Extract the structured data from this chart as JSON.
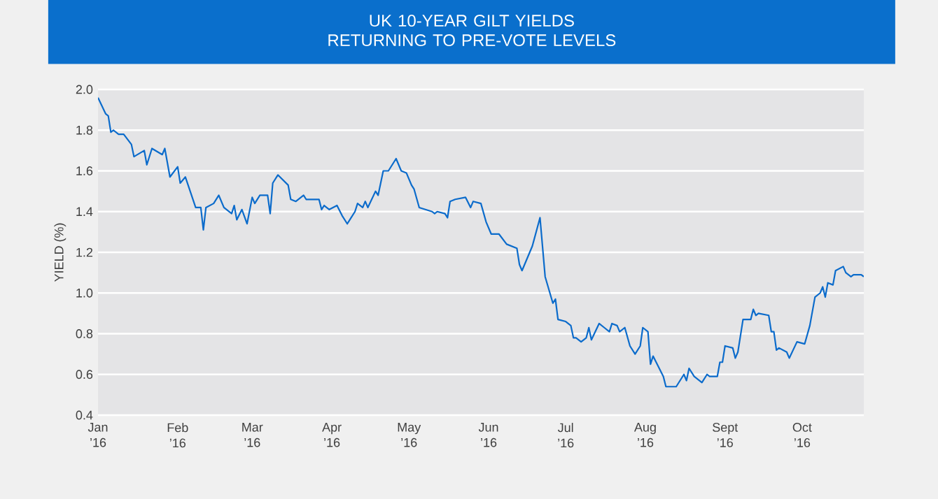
{
  "chart_data": {
    "type": "line",
    "title": "UK 10-YEAR GILT YIELDS RETURNING TO PRE-VOTE LEVELS",
    "ylabel": "YIELD (%)",
    "xlim": [
      "2016-01-01",
      "2016-10-25"
    ],
    "xticks": [
      {
        "value": "2016-01-01",
        "label": "Jan ’16"
      },
      {
        "value": "2016-02-01",
        "label": "Feb ’16"
      },
      {
        "value": "2016-03-01",
        "label": "Mar ’16"
      },
      {
        "value": "2016-04-01",
        "label": "Apr ’16"
      },
      {
        "value": "2016-05-01",
        "label": "May ’16"
      },
      {
        "value": "2016-06-01",
        "label": "Jun ’16"
      },
      {
        "value": "2016-07-01",
        "label": "Jul ’16"
      },
      {
        "value": "2016-08-01",
        "label": "Aug ’16"
      },
      {
        "value": "2016-09-01",
        "label": "Sept ’16"
      },
      {
        "value": "2016-10-01",
        "label": "Oct ’16"
      }
    ],
    "ylim": [
      0.4,
      2.0
    ],
    "yticks": [
      0.4,
      0.6,
      0.8,
      {
        "value": 1,
        "label": "1.0"
      },
      1.2,
      1.4,
      1.6,
      1.8,
      {
        "value": 2,
        "label": "2.0"
      }
    ],
    "grid": "y",
    "marker": "none",
    "line_style": "solid",
    "x": [
      "2016-01-01",
      "2016-01-04",
      "2016-01-05",
      "2016-01-06",
      "2016-01-07",
      "2016-01-09",
      "2016-01-11",
      "2016-01-14",
      "2016-01-15",
      "2016-01-19",
      "2016-01-20",
      "2016-01-22",
      "2016-01-26",
      "2016-01-27",
      "2016-01-29",
      "2016-02-01",
      "2016-02-02",
      "2016-02-04",
      "2016-02-08",
      "2016-02-10",
      "2016-02-11",
      "2016-02-12",
      "2016-02-15",
      "2016-02-17",
      "2016-02-19",
      "2016-02-22",
      "2016-02-23",
      "2016-02-24",
      "2016-02-26",
      "2016-02-28",
      "2016-03-01",
      "2016-03-02",
      "2016-03-04",
      "2016-03-07",
      "2016-03-08",
      "2016-03-09",
      "2016-03-11",
      "2016-03-15",
      "2016-03-16",
      "2016-03-18",
      "2016-03-21",
      "2016-03-22",
      "2016-03-27",
      "2016-03-28",
      "2016-03-29",
      "2016-03-31",
      "2016-04-03",
      "2016-04-05",
      "2016-04-07",
      "2016-04-08",
      "2016-04-10",
      "2016-04-11",
      "2016-04-13",
      "2016-04-14",
      "2016-04-15",
      "2016-04-18",
      "2016-04-19",
      "2016-04-21",
      "2016-04-23",
      "2016-04-26",
      "2016-04-28",
      "2016-04-30",
      "2016-05-02",
      "2016-05-03",
      "2016-05-05",
      "2016-05-10",
      "2016-05-11",
      "2016-05-12",
      "2016-05-15",
      "2016-05-16",
      "2016-05-17",
      "2016-05-19",
      "2016-05-23",
      "2016-05-25",
      "2016-05-26",
      "2016-05-29",
      "2016-05-31",
      "2016-06-02",
      "2016-06-05",
      "2016-06-08",
      "2016-06-12",
      "2016-06-13",
      "2016-06-14",
      "2016-06-18",
      "2016-06-21",
      "2016-06-23",
      "2016-06-26",
      "2016-06-27",
      "2016-06-28",
      "2016-07-01",
      "2016-07-03",
      "2016-07-04",
      "2016-07-05",
      "2016-07-07",
      "2016-07-09",
      "2016-07-10",
      "2016-07-11",
      "2016-07-14",
      "2016-07-16",
      "2016-07-18",
      "2016-07-19",
      "2016-07-21",
      "2016-07-22",
      "2016-07-24",
      "2016-07-26",
      "2016-07-28",
      "2016-07-30",
      "2016-07-31",
      "2016-08-02",
      "2016-08-03",
      "2016-08-04",
      "2016-08-08",
      "2016-08-09",
      "2016-08-11",
      "2016-08-13",
      "2016-08-16",
      "2016-08-17",
      "2016-08-18",
      "2016-08-20",
      "2016-08-23",
      "2016-08-25",
      "2016-08-26",
      "2016-08-29",
      "2016-08-30",
      "2016-08-31",
      "2016-09-01",
      "2016-09-04",
      "2016-09-05",
      "2016-09-06",
      "2016-09-08",
      "2016-09-11",
      "2016-09-12",
      "2016-09-13",
      "2016-09-14",
      "2016-09-18",
      "2016-09-19",
      "2016-09-20",
      "2016-09-21",
      "2016-09-22",
      "2016-09-25",
      "2016-09-26",
      "2016-09-29",
      "2016-10-02",
      "2016-10-04",
      "2016-10-06",
      "2016-10-08",
      "2016-10-09",
      "2016-10-10",
      "2016-10-11",
      "2016-10-13",
      "2016-10-14",
      "2016-10-17",
      "2016-10-18",
      "2016-10-20",
      "2016-10-21",
      "2016-10-24",
      "2016-10-25"
    ],
    "series": [
      {
        "color": "#0b6bcb",
        "values": [
          1.96,
          1.88,
          1.87,
          1.79,
          1.8,
          1.78,
          1.78,
          1.73,
          1.67,
          1.7,
          1.63,
          1.71,
          1.68,
          1.71,
          1.57,
          1.62,
          1.54,
          1.57,
          1.42,
          1.42,
          1.31,
          1.42,
          1.44,
          1.48,
          1.42,
          1.39,
          1.43,
          1.36,
          1.41,
          1.34,
          1.47,
          1.44,
          1.48,
          1.48,
          1.39,
          1.54,
          1.58,
          1.53,
          1.46,
          1.45,
          1.48,
          1.46,
          1.46,
          1.41,
          1.43,
          1.41,
          1.43,
          1.38,
          1.34,
          1.36,
          1.4,
          1.44,
          1.42,
          1.45,
          1.42,
          1.5,
          1.48,
          1.6,
          1.6,
          1.66,
          1.6,
          1.59,
          1.53,
          1.51,
          1.42,
          1.4,
          1.39,
          1.4,
          1.39,
          1.37,
          1.45,
          1.46,
          1.47,
          1.42,
          1.45,
          1.44,
          1.35,
          1.29,
          1.29,
          1.24,
          1.22,
          1.14,
          1.11,
          1.23,
          1.37,
          1.08,
          0.95,
          0.97,
          0.87,
          0.86,
          0.84,
          0.78,
          0.78,
          0.76,
          0.78,
          0.83,
          0.77,
          0.85,
          0.83,
          0.81,
          0.85,
          0.84,
          0.81,
          0.83,
          0.74,
          0.7,
          0.74,
          0.83,
          0.81,
          0.65,
          0.69,
          0.59,
          0.54,
          0.54,
          0.54,
          0.6,
          0.57,
          0.63,
          0.59,
          0.56,
          0.6,
          0.59,
          0.59,
          0.66,
          0.66,
          0.74,
          0.73,
          0.68,
          0.71,
          0.87,
          0.87,
          0.92,
          0.89,
          0.9,
          0.89,
          0.81,
          0.81,
          0.72,
          0.73,
          0.71,
          0.68,
          0.76,
          0.75,
          0.84,
          0.98,
          1.0,
          1.03,
          0.98,
          1.05,
          1.04,
          1.11,
          1.13,
          1.1,
          1.08,
          1.09,
          1.09,
          1.08
        ]
      }
    ]
  }
}
